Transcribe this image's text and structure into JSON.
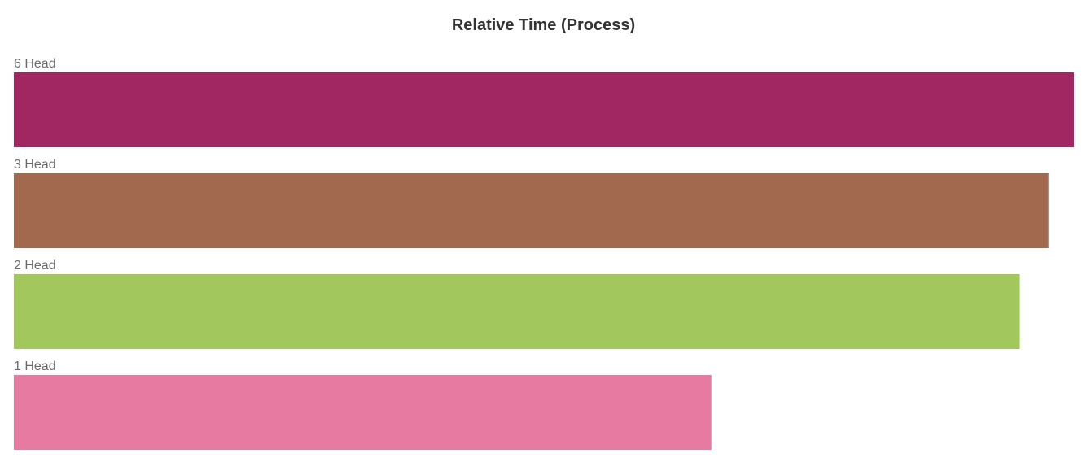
{
  "chart_data": {
    "type": "bar",
    "orientation": "horizontal",
    "title": "Relative Time (Process)",
    "xlabel": "",
    "ylabel": "",
    "xlim": [
      0,
      1
    ],
    "grid": false,
    "categories": [
      "6 Head",
      "3 Head",
      "2 Head",
      "1 Head"
    ],
    "values": [
      1.0,
      0.976,
      0.949,
      0.658
    ],
    "colors": [
      "#a02762",
      "#a2694f",
      "#a1c75d",
      "#e77aa0"
    ]
  }
}
